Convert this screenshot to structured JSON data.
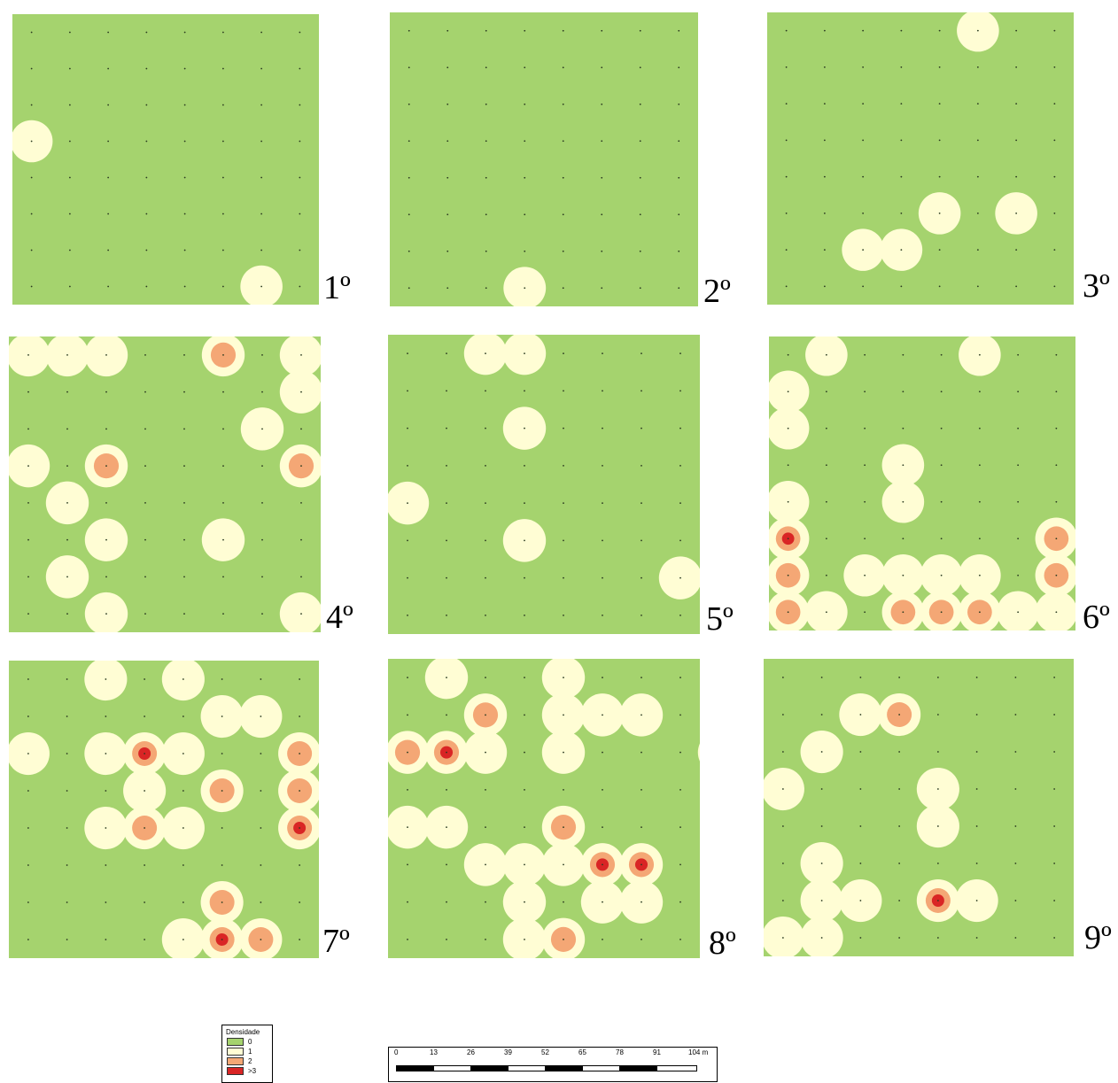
{
  "colors": {
    "zero": "#a5d36e",
    "one": "#fffdd4",
    "two": "#f4a775",
    "three": "#d92525",
    "dot": "#2a3a20"
  },
  "panels": [
    {
      "label": "1º",
      "blobs": [
        [
          0,
          3,
          1
        ],
        [
          6,
          7,
          1
        ]
      ]
    },
    {
      "label": "2º",
      "blobs": [
        [
          3,
          7,
          1
        ]
      ]
    },
    {
      "label": "3º",
      "blobs": [
        [
          5,
          0,
          1
        ],
        [
          4,
          5,
          1
        ],
        [
          3,
          6,
          1
        ],
        [
          2,
          6,
          1
        ],
        [
          6,
          5,
          1
        ]
      ]
    },
    {
      "label": "4º",
      "blobs": [
        [
          0,
          0,
          1
        ],
        [
          1,
          0,
          1
        ],
        [
          2,
          0,
          1
        ],
        [
          5,
          0,
          2
        ],
        [
          7,
          0,
          1
        ],
        [
          7,
          1,
          1
        ],
        [
          6,
          2,
          1
        ],
        [
          7,
          3,
          2
        ],
        [
          0,
          3,
          1
        ],
        [
          2,
          3,
          2
        ],
        [
          1,
          4,
          1
        ],
        [
          2,
          5,
          1
        ],
        [
          5,
          5,
          1
        ],
        [
          1,
          6,
          1
        ],
        [
          2,
          7,
          1
        ],
        [
          7,
          7,
          1
        ]
      ]
    },
    {
      "label": "5º",
      "blobs": [
        [
          2,
          0,
          1
        ],
        [
          3,
          0,
          1
        ],
        [
          3,
          2,
          1
        ],
        [
          0,
          4,
          1
        ],
        [
          3,
          5,
          1
        ],
        [
          7,
          6,
          1
        ]
      ]
    },
    {
      "label": "6º",
      "blobs": [
        [
          1,
          0,
          1
        ],
        [
          5,
          0,
          1
        ],
        [
          0,
          1,
          1
        ],
        [
          0,
          2,
          1
        ],
        [
          3,
          3,
          1
        ],
        [
          3,
          4,
          1
        ],
        [
          0,
          4,
          1
        ],
        [
          0,
          5,
          3
        ],
        [
          0,
          6,
          2
        ],
        [
          0,
          7,
          2
        ],
        [
          1,
          7,
          1
        ],
        [
          2,
          6,
          1
        ],
        [
          3,
          7,
          2
        ],
        [
          4,
          7,
          2
        ],
        [
          5,
          7,
          2
        ],
        [
          5,
          6,
          1
        ],
        [
          7,
          5,
          2
        ],
        [
          7,
          6,
          2
        ],
        [
          7,
          7,
          1
        ],
        [
          6,
          7,
          1
        ],
        [
          4,
          6,
          1
        ],
        [
          3,
          6,
          1
        ]
      ]
    },
    {
      "label": "7º",
      "blobs": [
        [
          2,
          0,
          1
        ],
        [
          4,
          0,
          1
        ],
        [
          0,
          2,
          1
        ],
        [
          2,
          2,
          1
        ],
        [
          3,
          2,
          3
        ],
        [
          4,
          2,
          1
        ],
        [
          5,
          1,
          1
        ],
        [
          6,
          1,
          1
        ],
        [
          3,
          3,
          1
        ],
        [
          5,
          3,
          2
        ],
        [
          2,
          4,
          1
        ],
        [
          3,
          4,
          2
        ],
        [
          4,
          4,
          1
        ],
        [
          7,
          2,
          2
        ],
        [
          7,
          3,
          2
        ],
        [
          7,
          4,
          3
        ],
        [
          5,
          6,
          2
        ],
        [
          5,
          7,
          3
        ],
        [
          6,
          7,
          2
        ],
        [
          4,
          7,
          1
        ]
      ]
    },
    {
      "label": "8º",
      "blobs": [
        [
          1,
          0,
          1
        ],
        [
          4,
          0,
          1
        ],
        [
          4,
          1,
          1
        ],
        [
          2,
          1,
          2
        ],
        [
          5,
          1,
          1
        ],
        [
          6,
          1,
          1
        ],
        [
          0,
          2,
          2
        ],
        [
          1,
          2,
          3
        ],
        [
          2,
          2,
          1
        ],
        [
          4,
          2,
          1
        ],
        [
          8,
          2,
          1
        ],
        [
          0,
          4,
          1
        ],
        [
          1,
          4,
          1
        ],
        [
          4,
          4,
          2
        ],
        [
          4,
          5,
          1
        ],
        [
          3,
          5,
          1
        ],
        [
          5,
          5,
          3
        ],
        [
          6,
          5,
          3
        ],
        [
          2,
          5,
          1
        ],
        [
          5,
          6,
          1
        ],
        [
          6,
          6,
          1
        ],
        [
          3,
          6,
          1
        ],
        [
          4,
          7,
          2
        ],
        [
          3,
          7,
          1
        ]
      ]
    },
    {
      "label": "9º",
      "blobs": [
        [
          3,
          1,
          2
        ],
        [
          2,
          1,
          1
        ],
        [
          1,
          2,
          1
        ],
        [
          0,
          3,
          1
        ],
        [
          4,
          3,
          1
        ],
        [
          4,
          4,
          1
        ],
        [
          1,
          5,
          1
        ],
        [
          1,
          6,
          1
        ],
        [
          2,
          6,
          1
        ],
        [
          0,
          7,
          1
        ],
        [
          4,
          6,
          3
        ],
        [
          5,
          6,
          1
        ],
        [
          1,
          7,
          1
        ]
      ]
    }
  ],
  "legend": {
    "title": "Densidade",
    "items": [
      {
        "label": "0",
        "color": "#a5d36e"
      },
      {
        "label": "1",
        "color": "#fffdd4"
      },
      {
        "label": "2",
        "color": "#f4a775"
      },
      {
        "label": ">3",
        "color": "#d92525"
      }
    ]
  },
  "scale": {
    "ticks": [
      "0",
      "13",
      "26",
      "39",
      "52",
      "65",
      "78",
      "91",
      "104 m"
    ]
  }
}
